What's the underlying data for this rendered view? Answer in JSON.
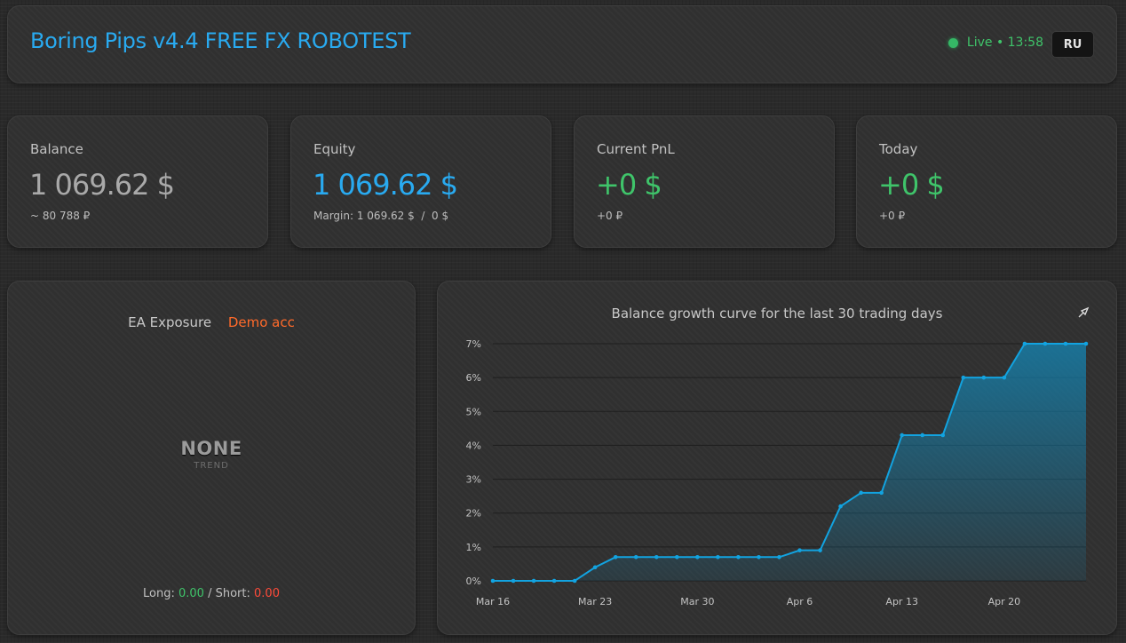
{
  "header": {
    "title": "Boring Pips v4.4 FREE FX ROBOTEST",
    "status": "Live • 13:58",
    "lang_button": "RU"
  },
  "stats": {
    "balance": {
      "label": "Balance",
      "value": "1 069.62 $",
      "sub": "~ 80 788 ₽",
      "color": "#a9a9a9"
    },
    "equity": {
      "label": "Equity",
      "value": "1 069.62 $",
      "sub": "Margin: 1 069.62 $  /  0 $",
      "color": "#29aaf0"
    },
    "pnl": {
      "label": "Current PnL",
      "value": "+0 $",
      "sub": "+0 ₽",
      "color": "#3fc46a"
    },
    "today": {
      "label": "Today",
      "value": "+0 $",
      "sub": "+0 ₽",
      "color": "#3fc46a"
    }
  },
  "exposure": {
    "title": "EA Exposure",
    "badge": "Demo acc",
    "trend_value": "NONE",
    "trend_label": "TREND",
    "long_label": "Long:",
    "long_value": "0.00",
    "separator": "/",
    "short_label": "Short:",
    "short_value": "0.00"
  },
  "chart": {
    "icon": "chart-icon"
  },
  "chart_data": {
    "type": "area",
    "title": "Balance growth curve for the last 30 trading days",
    "xlabel": "",
    "ylabel": "",
    "ylim": [
      0,
      7
    ],
    "yticks": [
      "0%",
      "1%",
      "2%",
      "3%",
      "4%",
      "5%",
      "6%",
      "7%"
    ],
    "xticks": [
      "Mar 16",
      "Mar 23",
      "Mar 30",
      "Apr 6",
      "Apr 13",
      "Apr 20"
    ],
    "xtick_index": [
      0,
      5,
      10,
      15,
      20,
      25
    ],
    "series": [
      {
        "values": [
          0,
          0,
          0,
          0,
          0,
          0.4,
          0.7,
          0.7,
          0.7,
          0.7,
          0.7,
          0.7,
          0.7,
          0.7,
          0.7,
          0.9,
          0.9,
          2.2,
          2.6,
          2.6,
          4.3,
          4.3,
          4.3,
          6.0,
          6.0,
          6.0,
          7.0,
          7.0,
          7.0,
          7.0
        ],
        "color": "#12a3e0"
      }
    ],
    "grid": true
  }
}
